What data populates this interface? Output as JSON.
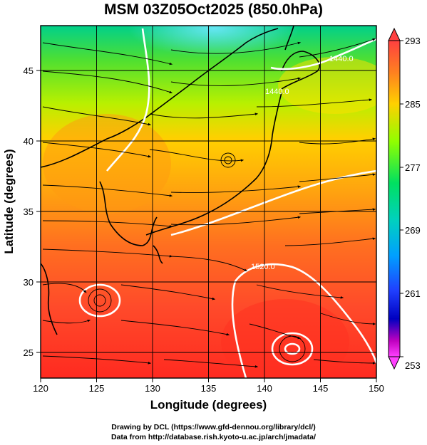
{
  "title": "MSM 03Z05Oct2025 (850.0hPa)",
  "map": {
    "xlabel": "Longitude (degrees)",
    "ylabel": "Latitude  (degrees)",
    "lon_ticks": [
      "120",
      "125",
      "130",
      "135",
      "140",
      "145",
      "150"
    ],
    "lat_ticks": [
      "25",
      "30",
      "35",
      "40",
      "45"
    ],
    "lon_range": [
      120,
      150
    ],
    "lat_range": [
      22.5,
      47.5
    ],
    "contour_labels": [
      "1440.0",
      "1440.0",
      "1520.0"
    ]
  },
  "colorbar": {
    "ticks": [
      "293",
      "285",
      "277",
      "269",
      "261",
      "253"
    ],
    "colors": [
      "#ff4040",
      "#ff8020",
      "#ffd000",
      "#90ff00",
      "#00e060",
      "#00d0c0",
      "#00a0ff",
      "#2040ff",
      "#0000c0",
      "#c000c0",
      "#ff40ff"
    ]
  },
  "footer": {
    "line1": "Drawing by DCL (https://www.gfd-dennou.org/library/dcl/)",
    "line2": "Data from http://database.rish.kyoto-u.ac.jp/arch/jmadata/"
  }
}
